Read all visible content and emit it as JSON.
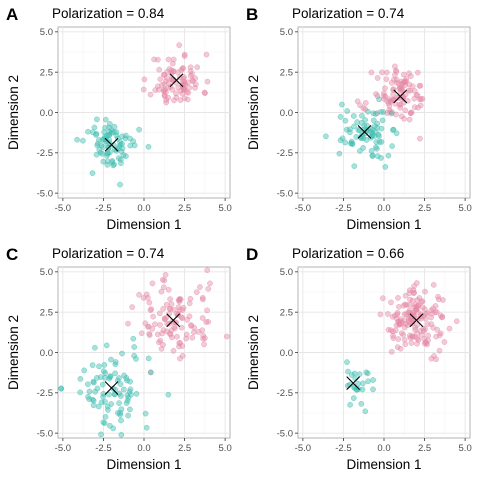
{
  "chart_data": [
    {
      "type": "scatter",
      "panel": "A",
      "title": "Polarization = 0.84",
      "xlabel": "Dimension 1",
      "ylabel": "Dimension 2",
      "xlim": [
        -5.3,
        5.3
      ],
      "ylim": [
        -5.3,
        5.3
      ],
      "xticks": [
        -5.0,
        -2.5,
        0.0,
        2.5,
        5.0
      ],
      "yticks": [
        -5.0,
        -2.5,
        0.0,
        2.5,
        5.0
      ],
      "tick_labels": [
        "-5.0",
        "-2.5",
        "0.0",
        "2.5",
        "5.0"
      ],
      "grid": true,
      "series": [
        {
          "color": "#e58aa6",
          "n": 90,
          "center": [
            2.0,
            2.0
          ],
          "spread": 0.8,
          "seed": 11
        },
        {
          "color": "#3dbdb0",
          "n": 80,
          "center": [
            -2.0,
            -2.0
          ],
          "spread": 0.8,
          "seed": 12
        }
      ],
      "centroids": [
        [
          2.0,
          2.0
        ],
        [
          -2.0,
          -2.0
        ]
      ]
    },
    {
      "type": "scatter",
      "panel": "B",
      "title": "Polarization = 0.74",
      "xlabel": "Dimension 1",
      "ylabel": "Dimension 2",
      "xlim": [
        -5.3,
        5.3
      ],
      "ylim": [
        -5.3,
        5.3
      ],
      "xticks": [
        -5.0,
        -2.5,
        0.0,
        2.5,
        5.0
      ],
      "yticks": [
        -5.0,
        -2.5,
        0.0,
        2.5,
        5.0
      ],
      "tick_labels": [
        "-5.0",
        "-2.5",
        "0.0",
        "2.5",
        "5.0"
      ],
      "grid": true,
      "series": [
        {
          "color": "#e58aa6",
          "n": 100,
          "center": [
            1.0,
            1.0
          ],
          "spread": 0.85,
          "seed": 21
        },
        {
          "color": "#3dbdb0",
          "n": 80,
          "center": [
            -1.2,
            -1.2
          ],
          "spread": 0.8,
          "seed": 22
        }
      ],
      "centroids": [
        [
          1.0,
          1.0
        ],
        [
          -1.2,
          -1.2
        ]
      ]
    },
    {
      "type": "scatter",
      "panel": "C",
      "title": "Polarization = 0.74",
      "xlabel": "Dimension 1",
      "ylabel": "Dimension 2",
      "xlim": [
        -5.3,
        5.3
      ],
      "ylim": [
        -5.3,
        5.3
      ],
      "xticks": [
        -5.0,
        -2.5,
        0.0,
        2.5,
        5.0
      ],
      "yticks": [
        -5.0,
        -2.5,
        0.0,
        2.5,
        5.0
      ],
      "tick_labels": [
        "-5.0",
        "-2.5",
        "0.0",
        "2.5",
        "5.0"
      ],
      "grid": true,
      "series": [
        {
          "color": "#e58aa6",
          "n": 110,
          "center": [
            1.8,
            2.0
          ],
          "spread": 1.3,
          "seed": 31
        },
        {
          "color": "#3dbdb0",
          "n": 90,
          "center": [
            -2.0,
            -2.2
          ],
          "spread": 1.3,
          "seed": 32
        }
      ],
      "centroids": [
        [
          1.8,
          2.0
        ],
        [
          -2.0,
          -2.2
        ]
      ]
    },
    {
      "type": "scatter",
      "panel": "D",
      "title": "Polarization = 0.66",
      "xlabel": "Dimension 1",
      "ylabel": "Dimension 2",
      "xlim": [
        -5.3,
        5.3
      ],
      "ylim": [
        -5.3,
        5.3
      ],
      "xticks": [
        -5.0,
        -2.5,
        0.0,
        2.5,
        5.0
      ],
      "yticks": [
        -5.0,
        -2.5,
        0.0,
        2.5,
        5.0
      ],
      "tick_labels": [
        "-5.0",
        "-2.5",
        "0.0",
        "2.5",
        "5.0"
      ],
      "grid": true,
      "series": [
        {
          "color": "#e58aa6",
          "n": 150,
          "center": [
            2.0,
            2.0
          ],
          "spread": 0.95,
          "seed": 41
        },
        {
          "color": "#3dbdb0",
          "n": 25,
          "center": [
            -1.9,
            -1.9
          ],
          "spread": 0.65,
          "seed": 42
        }
      ],
      "centroids": [
        [
          2.0,
          2.0
        ],
        [
          -1.9,
          -1.9
        ]
      ]
    }
  ]
}
